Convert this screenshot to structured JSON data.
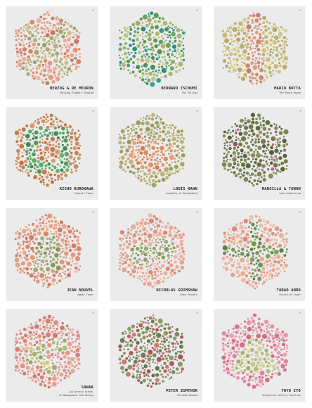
{
  "plates": [
    {
      "architect": "HERZOG & DE MEURON",
      "building": "Beijing Olympic Stadium",
      "pattern": "cross",
      "palette": {
        "bg": [
          "#e8927a",
          "#d98a6e",
          "#e7a48c",
          "#c97960",
          "#eab39c",
          "#d4826a"
        ],
        "fg": [
          "#b9b27c",
          "#a8a86e",
          "#c9bd8a",
          "#9fa070"
        ]
      }
    },
    {
      "architect": "BERNARD TSCHUMI",
      "building": "The Follies",
      "pattern": "nested-squares",
      "palette": {
        "bg": [
          "#6fa55a",
          "#5e9a4e",
          "#88b06a",
          "#4f8f5a",
          "#3d9a8a",
          "#2e8c86"
        ],
        "fg": [
          "#a7bb72",
          "#c0c68a",
          "#b7b27c",
          "#9bb26a"
        ]
      }
    },
    {
      "architect": "MARIO BOTTA",
      "building": "The Round House",
      "pattern": "vertical-band",
      "palette": {
        "bg": [
          "#cfc47e",
          "#c9ba72",
          "#bdb06e",
          "#d6c98d",
          "#b8aa66"
        ],
        "fg": [
          "#d78a6a",
          "#c97d63",
          "#e09d7c",
          "#cc8a70"
        ]
      }
    },
    {
      "architect": "KISHO KUROKAWA",
      "building": "Capsule Tower",
      "pattern": "ring",
      "palette": {
        "bg": [
          "#d08a5c",
          "#c47b4e",
          "#d99a6e",
          "#c0703f",
          "#b9824e"
        ],
        "fg": [
          "#4f9a5a",
          "#5fa86a",
          "#3f8a4e",
          "#6cae74"
        ]
      }
    },
    {
      "architect": "LOUIS KAHN",
      "building": "Assembly of Bangladesh",
      "pattern": "circle",
      "palette": {
        "bg": [
          "#a8a566",
          "#b5ae72",
          "#98a05e",
          "#c0b47a",
          "#9c9a5c"
        ],
        "fg": [
          "#e08c62",
          "#d7804f",
          "#e89d74",
          "#cf7a52"
        ]
      }
    },
    {
      "architect": "MANGILLA & TUNON",
      "building": "Leon Auditorium",
      "pattern": "grid-dots",
      "palette": {
        "bg": [
          "#6f7a4a",
          "#5f6c42",
          "#7e8654",
          "#56623c",
          "#8a8a58"
        ],
        "fg": [
          "#a45a7a",
          "#b86a8a",
          "#9a4e6e",
          "#c27a94"
        ]
      }
    },
    {
      "architect": "JEAN NOUVEL",
      "building": "Agbar Tower",
      "pattern": "bullet",
      "palette": {
        "bg": [
          "#e39478",
          "#d9866a",
          "#eaa588",
          "#cf7c62",
          "#e2987e"
        ],
        "fg": [
          "#9c9e6c",
          "#a9a676",
          "#8e945e",
          "#b1ab7c"
        ]
      }
    },
    {
      "architect": "NICHOLAS GRIMSHAW",
      "building": "Eden Project",
      "pattern": "domes",
      "palette": {
        "bg": [
          "#e7a38e",
          "#dd9682",
          "#eeb29e",
          "#d88a76",
          "#e9a996"
        ],
        "fg": [
          "#98a672",
          "#8c9c66",
          "#a6b07e",
          "#8a9a60"
        ]
      }
    },
    {
      "architect": "TADAO ANDO",
      "building": "Church of Light",
      "pattern": "plus",
      "palette": {
        "bg": [
          "#e49a86",
          "#eaa996",
          "#dc8c78",
          "#e5b093",
          "#f0bba6"
        ],
        "fg": [
          "#6e8a4e",
          "#7a9458",
          "#627e46",
          "#86a064"
        ]
      }
    },
    {
      "architect": "SANAA",
      "building": "Zollverein School\nof Management and Design",
      "pattern": "squares",
      "palette": {
        "bg": [
          "#e38f84",
          "#d9807a",
          "#eaa08e",
          "#cf7870",
          "#e4a68a"
        ],
        "fg": [
          "#a4b06e",
          "#b6bb7a",
          "#98a666",
          "#d8c36a"
        ]
      }
    },
    {
      "architect": "PETER ZUMTHOR",
      "building": "Kolumba Museum",
      "pattern": "stripes",
      "palette": {
        "bg": [
          "#7a8a5a",
          "#6e8052",
          "#889664",
          "#63764a",
          "#93986a"
        ],
        "fg": [
          "#c06a6a",
          "#b25c60",
          "#cc7a76",
          "#a85558"
        ]
      }
    },
    {
      "architect": "TOYO ITO",
      "building": "Serpentine Gallery Pavilion",
      "pattern": "triangles",
      "palette": {
        "bg": [
          "#e1839a",
          "#d6768e",
          "#e894a8",
          "#cf6e86",
          "#ec9fb0"
        ],
        "fg": [
          "#b7ba78",
          "#c8c888",
          "#a8ae6c",
          "#d6cf8e"
        ]
      }
    }
  ]
}
